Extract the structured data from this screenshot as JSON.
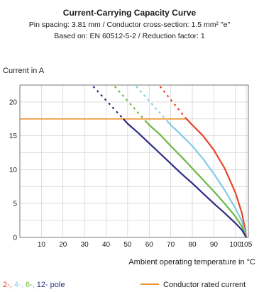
{
  "chart_data": {
    "type": "line",
    "title": "Current-Carrying Capacity Curve",
    "subtitle_lines": [
      "Pin spacing: 3.81 mm / Conductor cross-section: 1.5 mm² \"e\"",
      "Based on: EN 60512-5-2 / Reduction factor: 1"
    ],
    "ylabel": "Current in A",
    "xlabel": "Ambient operating temperature in °C",
    "xlim": [
      0,
      106
    ],
    "ylim": [
      0,
      22.5
    ],
    "x_ticks": [
      "10",
      "20",
      "30",
      "40",
      "50",
      "60",
      "70",
      "80",
      "90",
      "100",
      "105"
    ],
    "x_tick_values": [
      10,
      20,
      30,
      40,
      50,
      60,
      70,
      80,
      90,
      100,
      105
    ],
    "y_ticks": [
      "0",
      "5",
      "10",
      "15",
      "20"
    ],
    "y_tick_values": [
      0,
      5,
      10,
      15,
      20
    ],
    "grid": true,
    "series": [
      {
        "name": "2-",
        "color": "#e8442b",
        "dashed": [
          [
            65,
            22.3
          ],
          [
            77,
            17.6
          ]
        ],
        "solid": [
          [
            77,
            17.6
          ],
          [
            80,
            16.6
          ],
          [
            85,
            15.0
          ],
          [
            90,
            12.9
          ],
          [
            95,
            10.2
          ],
          [
            100,
            6.6
          ],
          [
            103,
            3.6
          ],
          [
            104.5,
            1.2
          ],
          [
            105,
            0
          ]
        ]
      },
      {
        "name": "4-",
        "color": "#84cbe6",
        "dashed": [
          [
            54,
            22.3
          ],
          [
            68,
            17.3
          ]
        ],
        "solid": [
          [
            68,
            17.3
          ],
          [
            70,
            16.6
          ],
          [
            75,
            15.1
          ],
          [
            80,
            13.5
          ],
          [
            85,
            11.6
          ],
          [
            90,
            9.4
          ],
          [
            95,
            7.0
          ],
          [
            100,
            4.3
          ],
          [
            103,
            2.4
          ],
          [
            105,
            0
          ]
        ]
      },
      {
        "name": "6-",
        "color": "#6ab841",
        "dashed": [
          [
            44,
            22.3
          ],
          [
            58,
            17.3
          ]
        ],
        "solid": [
          [
            58,
            17.3
          ],
          [
            60,
            16.6
          ],
          [
            65,
            15.2
          ],
          [
            70,
            13.5
          ],
          [
            75,
            11.9
          ],
          [
            80,
            10.2
          ],
          [
            85,
            8.5
          ],
          [
            90,
            6.8
          ],
          [
            95,
            5.0
          ],
          [
            100,
            3.1
          ],
          [
            103,
            1.6
          ],
          [
            105,
            0
          ]
        ]
      },
      {
        "name": "12-",
        "color": "#2e2c84",
        "dashed": [
          [
            34,
            22.3
          ],
          [
            48,
            17.5
          ]
        ],
        "solid": [
          [
            48,
            17.5
          ],
          [
            50,
            16.8
          ],
          [
            55,
            15.4
          ],
          [
            60,
            13.9
          ],
          [
            65,
            12.4
          ],
          [
            70,
            10.9
          ],
          [
            75,
            9.4
          ],
          [
            80,
            8.0
          ],
          [
            85,
            6.5
          ],
          [
            90,
            5.0
          ],
          [
            95,
            3.6
          ],
          [
            100,
            2.1
          ],
          [
            103,
            1.1
          ],
          [
            105,
            0
          ]
        ]
      }
    ],
    "rated_current": {
      "name": "Conductor rated current",
      "value": 17.5,
      "x_end": 77,
      "color": "#f0922c"
    },
    "legend": {
      "pole_items": [
        "2-",
        "4-",
        "6-",
        "12-"
      ],
      "pole_suffix": " pole",
      "separator": ", ",
      "rated_label": "Conductor rated current",
      "placement": "bottom"
    }
  }
}
